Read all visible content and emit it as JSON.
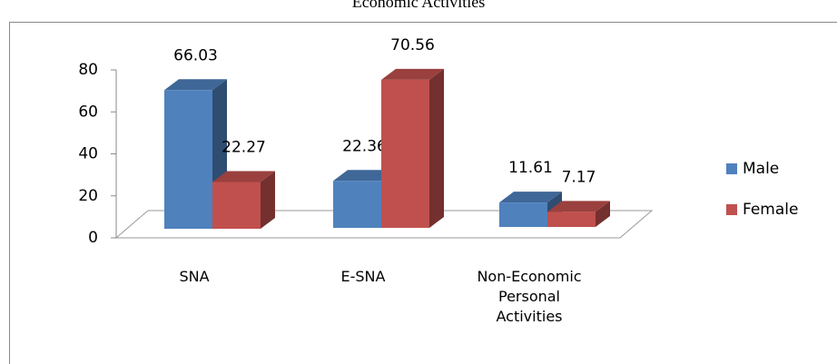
{
  "chart_data": {
    "type": "bar3d",
    "title": "Economic Activities",
    "categories": [
      "SNA",
      "E-SNA",
      "Non-Economic Personal Activities"
    ],
    "series": [
      {
        "name": "Male",
        "color": "#4f81bd",
        "values": [
          66.03,
          22.36,
          11.61
        ]
      },
      {
        "name": "Female",
        "color": "#c0504d",
        "values": [
          22.27,
          70.56,
          7.17
        ]
      }
    ],
    "ylim": [
      0,
      80
    ],
    "yticks": [
      0,
      20,
      40,
      60,
      80
    ],
    "grid": false,
    "legend": "right"
  }
}
